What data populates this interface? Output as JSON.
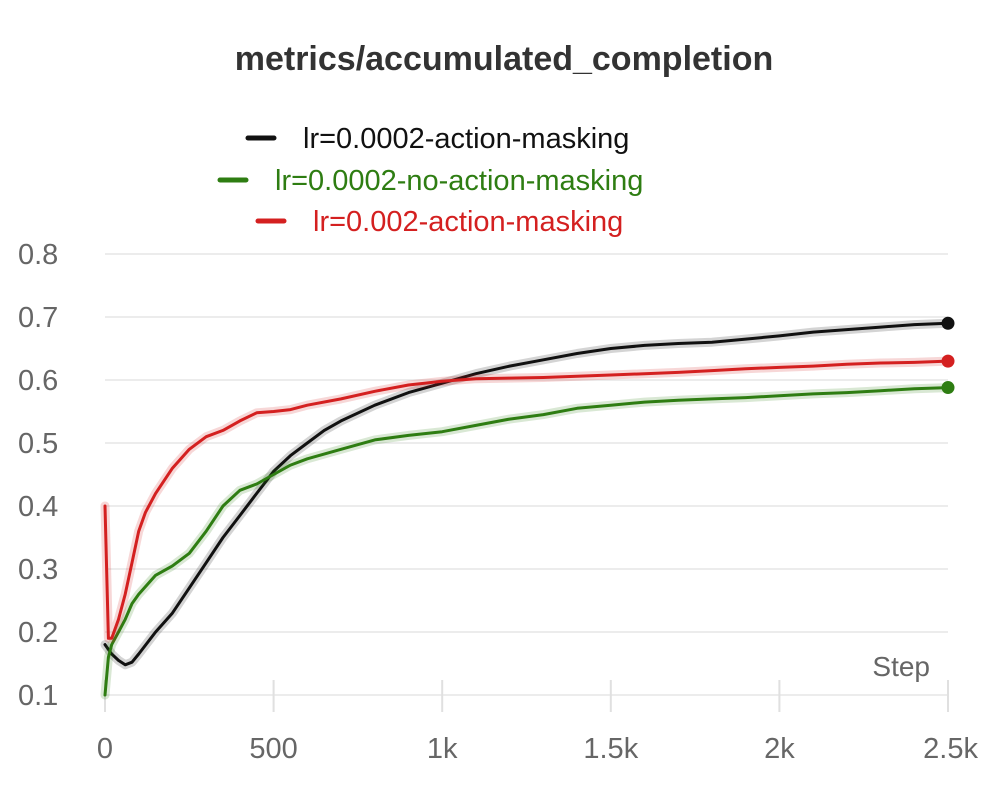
{
  "chart_data": {
    "type": "line",
    "title": "metrics/accumulated_completion",
    "xlabel": "Step",
    "ylabel": "",
    "xlim": [
      0,
      2500
    ],
    "ylim": [
      0.1,
      0.8
    ],
    "x_ticks": [
      {
        "value": 0,
        "label": "0"
      },
      {
        "value": 500,
        "label": "500"
      },
      {
        "value": 1000,
        "label": "1k"
      },
      {
        "value": 1500,
        "label": "1.5k"
      },
      {
        "value": 2000,
        "label": "2k"
      },
      {
        "value": 2500,
        "label": "2.5k"
      }
    ],
    "y_ticks": [
      {
        "value": 0.1,
        "label": "0.1"
      },
      {
        "value": 0.2,
        "label": "0.2"
      },
      {
        "value": 0.3,
        "label": "0.3"
      },
      {
        "value": 0.4,
        "label": "0.4"
      },
      {
        "value": 0.5,
        "label": "0.5"
      },
      {
        "value": 0.6,
        "label": "0.6"
      },
      {
        "value": 0.7,
        "label": "0.7"
      },
      {
        "value": 0.8,
        "label": "0.8"
      }
    ],
    "grid": "horizontal",
    "legend_position": "top-center",
    "series": [
      {
        "name": "lr=0.0002-action-masking",
        "color": "#111111",
        "points": [
          [
            0,
            0.18
          ],
          [
            20,
            0.165
          ],
          [
            40,
            0.155
          ],
          [
            60,
            0.148
          ],
          [
            80,
            0.152
          ],
          [
            100,
            0.165
          ],
          [
            150,
            0.2
          ],
          [
            200,
            0.23
          ],
          [
            250,
            0.27
          ],
          [
            300,
            0.31
          ],
          [
            350,
            0.35
          ],
          [
            400,
            0.385
          ],
          [
            450,
            0.42
          ],
          [
            500,
            0.455
          ],
          [
            550,
            0.48
          ],
          [
            600,
            0.5
          ],
          [
            650,
            0.52
          ],
          [
            700,
            0.535
          ],
          [
            800,
            0.56
          ],
          [
            900,
            0.58
          ],
          [
            1000,
            0.595
          ],
          [
            1100,
            0.61
          ],
          [
            1200,
            0.622
          ],
          [
            1300,
            0.632
          ],
          [
            1400,
            0.642
          ],
          [
            1500,
            0.65
          ],
          [
            1600,
            0.655
          ],
          [
            1700,
            0.658
          ],
          [
            1800,
            0.66
          ],
          [
            1900,
            0.665
          ],
          [
            2000,
            0.67
          ],
          [
            2100,
            0.676
          ],
          [
            2200,
            0.68
          ],
          [
            2300,
            0.684
          ],
          [
            2400,
            0.688
          ],
          [
            2500,
            0.69
          ]
        ]
      },
      {
        "name": "lr=0.0002-no-action-masking",
        "color": "#2e7d12",
        "points": [
          [
            0,
            0.1
          ],
          [
            10,
            0.16
          ],
          [
            20,
            0.18
          ],
          [
            40,
            0.2
          ],
          [
            60,
            0.22
          ],
          [
            80,
            0.245
          ],
          [
            100,
            0.26
          ],
          [
            150,
            0.29
          ],
          [
            200,
            0.305
          ],
          [
            250,
            0.325
          ],
          [
            300,
            0.36
          ],
          [
            350,
            0.4
          ],
          [
            400,
            0.425
          ],
          [
            450,
            0.435
          ],
          [
            500,
            0.45
          ],
          [
            550,
            0.465
          ],
          [
            600,
            0.475
          ],
          [
            700,
            0.49
          ],
          [
            800,
            0.505
          ],
          [
            900,
            0.512
          ],
          [
            1000,
            0.518
          ],
          [
            1100,
            0.528
          ],
          [
            1200,
            0.538
          ],
          [
            1300,
            0.545
          ],
          [
            1400,
            0.555
          ],
          [
            1500,
            0.56
          ],
          [
            1600,
            0.565
          ],
          [
            1700,
            0.568
          ],
          [
            1800,
            0.57
          ],
          [
            1900,
            0.572
          ],
          [
            2000,
            0.575
          ],
          [
            2100,
            0.578
          ],
          [
            2200,
            0.58
          ],
          [
            2300,
            0.583
          ],
          [
            2400,
            0.586
          ],
          [
            2500,
            0.588
          ]
        ]
      },
      {
        "name": "lr=0.002-action-masking",
        "color": "#d42020",
        "points": [
          [
            0,
            0.4
          ],
          [
            10,
            0.19
          ],
          [
            20,
            0.19
          ],
          [
            40,
            0.22
          ],
          [
            60,
            0.26
          ],
          [
            80,
            0.31
          ],
          [
            100,
            0.36
          ],
          [
            120,
            0.39
          ],
          [
            150,
            0.42
          ],
          [
            200,
            0.46
          ],
          [
            250,
            0.49
          ],
          [
            300,
            0.51
          ],
          [
            350,
            0.52
          ],
          [
            400,
            0.535
          ],
          [
            450,
            0.548
          ],
          [
            500,
            0.55
          ],
          [
            550,
            0.553
          ],
          [
            600,
            0.56
          ],
          [
            700,
            0.57
          ],
          [
            800,
            0.582
          ],
          [
            900,
            0.592
          ],
          [
            1000,
            0.598
          ],
          [
            1100,
            0.602
          ],
          [
            1200,
            0.603
          ],
          [
            1300,
            0.604
          ],
          [
            1400,
            0.606
          ],
          [
            1500,
            0.608
          ],
          [
            1600,
            0.61
          ],
          [
            1700,
            0.612
          ],
          [
            1800,
            0.615
          ],
          [
            1900,
            0.618
          ],
          [
            2000,
            0.62
          ],
          [
            2100,
            0.622
          ],
          [
            2200,
            0.625
          ],
          [
            2300,
            0.627
          ],
          [
            2400,
            0.628
          ],
          [
            2500,
            0.63
          ]
        ]
      }
    ]
  }
}
